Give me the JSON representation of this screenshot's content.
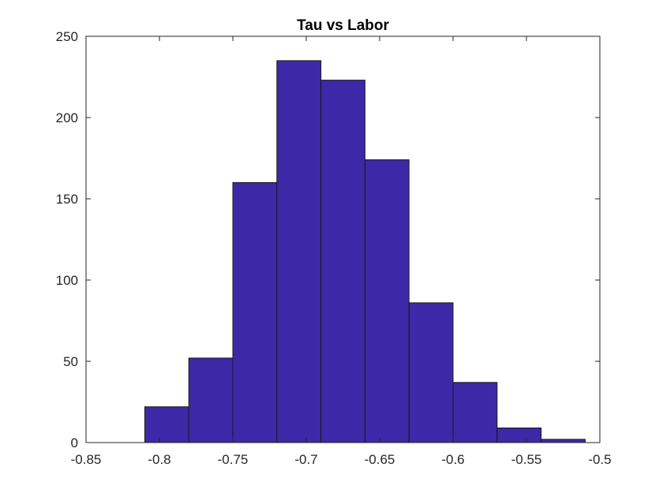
{
  "chart_data": {
    "type": "bar",
    "title": "Tau vs Labor",
    "xlabel": "",
    "ylabel": "",
    "xlim": [
      -0.85,
      -0.5
    ],
    "ylim": [
      0,
      250
    ],
    "xticks": [
      -0.85,
      -0.8,
      -0.75,
      -0.7,
      -0.65,
      -0.6,
      -0.55,
      -0.5
    ],
    "xtick_labels": [
      "-0.85",
      "-0.8",
      "-0.75",
      "-0.7",
      "-0.65",
      "-0.6",
      "-0.55",
      "-0.5"
    ],
    "yticks": [
      0,
      50,
      100,
      150,
      200,
      250
    ],
    "ytick_labels": [
      "0",
      "50",
      "100",
      "150",
      "200",
      "250"
    ],
    "bin_edges": [
      -0.81,
      -0.78,
      -0.75,
      -0.72,
      -0.69,
      -0.66,
      -0.63,
      -0.6,
      -0.57,
      -0.54,
      -0.51
    ],
    "values": [
      22,
      52,
      160,
      235,
      223,
      174,
      86,
      37,
      9,
      2
    ],
    "grid": false,
    "legend": "none",
    "bar_color": "#3d28a8",
    "edge_color": "#1a1a1a"
  }
}
